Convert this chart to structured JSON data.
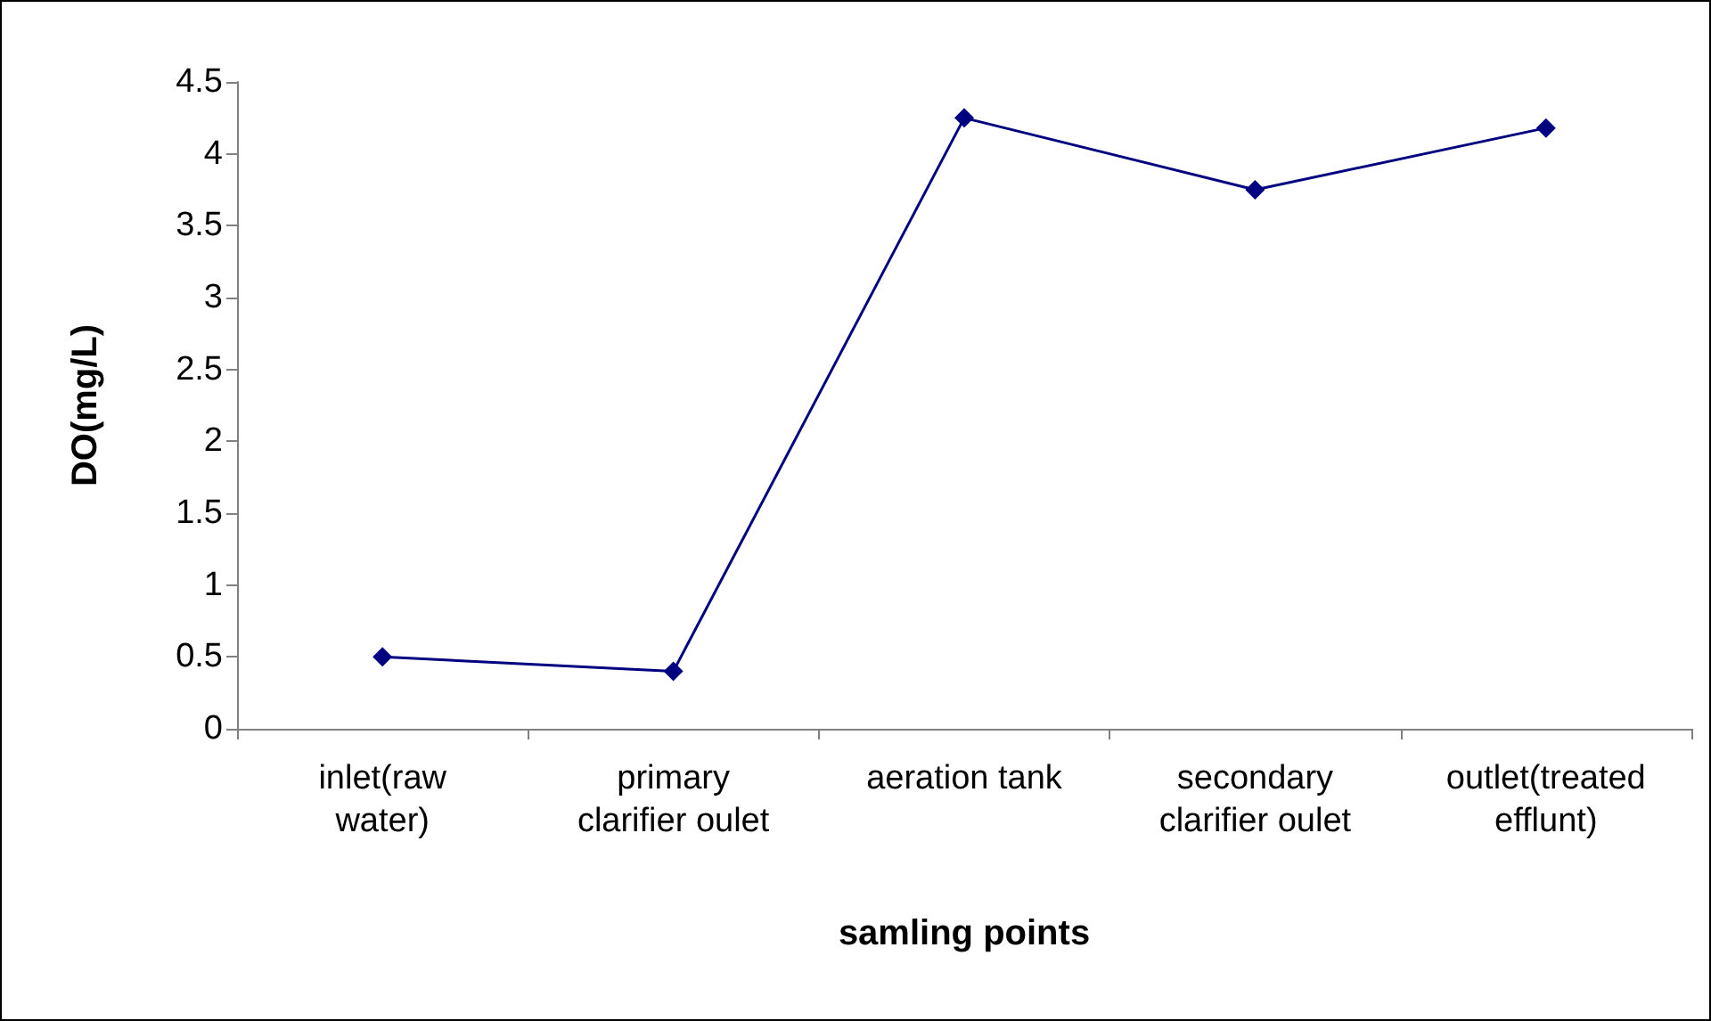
{
  "chart_data": {
    "type": "line",
    "xlabel": "samling points",
    "ylabel": "DO(mg/L)",
    "categories": [
      "inlet(raw\nwater)",
      "primary\nclarifier oulet",
      "aeration tank",
      "secondary\nclarifier oulet",
      "outlet(treated\nefflunt)"
    ],
    "series": [
      {
        "color": "#000080",
        "values": [
          0.5,
          0.4,
          4.25,
          3.75,
          4.18
        ]
      }
    ],
    "ylim": [
      0,
      4.5
    ],
    "yticks": [
      0,
      0.5,
      1,
      1.5,
      2,
      2.5,
      3,
      3.5,
      4,
      4.5
    ],
    "grid": false,
    "marker": "diamond",
    "line_style": "solid"
  }
}
